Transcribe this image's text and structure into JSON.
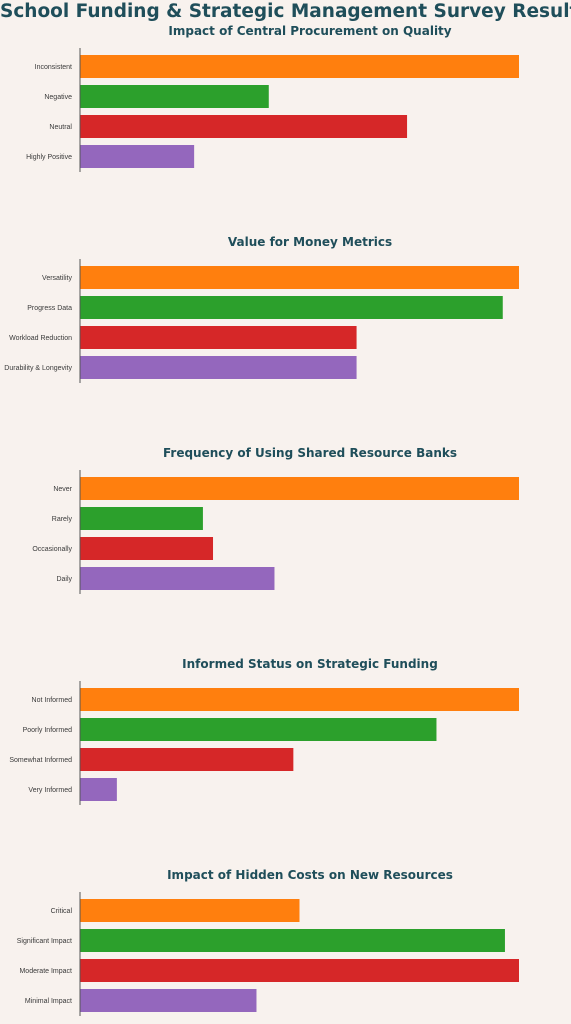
{
  "page": {
    "title": "School Funding & Strategic Management Survey Results"
  },
  "chart_data": [
    {
      "type": "bar",
      "orientation": "horizontal",
      "title": "Impact of Central Procurement on Quality",
      "categories": [
        "Inconsistent",
        "Negative",
        "Neutral",
        "Highly Positive"
      ],
      "values": [
        100,
        43,
        74.5,
        26
      ],
      "xlabel": "",
      "ylabel": "",
      "xlim": [
        0,
        100
      ],
      "colors": [
        "#ff7f0e",
        "#2ca02c",
        "#d62728",
        "#9467bd"
      ]
    },
    {
      "type": "bar",
      "orientation": "horizontal",
      "title": "Value for Money Metrics",
      "categories": [
        "Versatility",
        "Progress Data",
        "Workload Reduction",
        "Durability & Longevity"
      ],
      "values": [
        100,
        96.3,
        63,
        63
      ],
      "xlabel": "",
      "ylabel": "",
      "xlim": [
        0,
        100
      ],
      "colors": [
        "#ff7f0e",
        "#2ca02c",
        "#d62728",
        "#9467bd"
      ]
    },
    {
      "type": "bar",
      "orientation": "horizontal",
      "title": "Frequency of Using Shared Resource Banks",
      "categories": [
        "Never",
        "Rarely",
        "Occasionally",
        "Daily"
      ],
      "values": [
        100,
        28,
        30.3,
        44.3
      ],
      "xlabel": "",
      "ylabel": "",
      "xlim": [
        0,
        100
      ],
      "colors": [
        "#ff7f0e",
        "#2ca02c",
        "#d62728",
        "#9467bd"
      ]
    },
    {
      "type": "bar",
      "orientation": "horizontal",
      "title": "Informed Status on Strategic Funding",
      "categories": [
        "Not Informed",
        "Poorly Informed",
        "Somewhat Informed",
        "Very Informed"
      ],
      "values": [
        100,
        81.2,
        48.6,
        8.4
      ],
      "xlabel": "",
      "ylabel": "",
      "xlim": [
        0,
        100
      ],
      "colors": [
        "#ff7f0e",
        "#2ca02c",
        "#d62728",
        "#9467bd"
      ]
    },
    {
      "type": "bar",
      "orientation": "horizontal",
      "title": "Impact of Hidden Costs on New Resources",
      "categories": [
        "Critical",
        "Significant Impact",
        "Moderate Impact",
        "Minimal Impact"
      ],
      "values": [
        50,
        96.8,
        100,
        40.2
      ],
      "xlabel": "",
      "ylabel": "",
      "xlim": [
        0,
        100
      ],
      "colors": [
        "#ff7f0e",
        "#2ca02c",
        "#d62728",
        "#9467bd"
      ]
    }
  ]
}
